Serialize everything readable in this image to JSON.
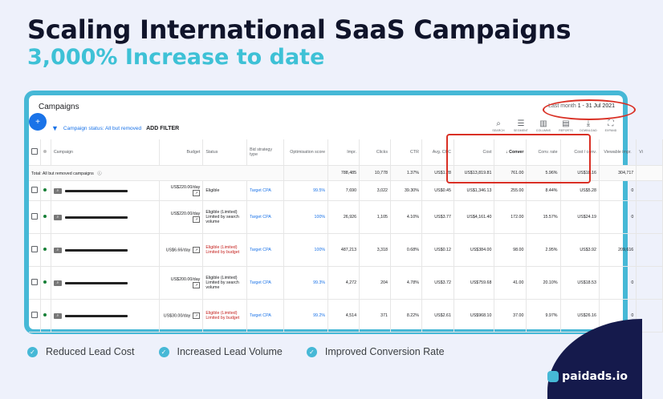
{
  "hero": {
    "title": "Scaling International SaaS Campaigns",
    "subtitle": "3,000% Increase to date"
  },
  "panel": {
    "title": "Campaigns",
    "date_label": "Last month",
    "date_value": "1 - 31 Jul 2021",
    "filter_status": "Campaign status: All but removed",
    "add_filter": "ADD FILTER"
  },
  "tools": [
    {
      "icon": "search-icon",
      "label": "SEARCH"
    },
    {
      "icon": "segment-icon",
      "label": "SEGMENT"
    },
    {
      "icon": "columns-icon",
      "label": "COLUMNS"
    },
    {
      "icon": "reports-icon",
      "label": "REPORTS"
    },
    {
      "icon": "download-icon",
      "label": "DOWNLOAD"
    },
    {
      "icon": "expand-icon",
      "label": "EXPAND"
    }
  ],
  "table": {
    "headers": [
      "Campaign",
      "Budget",
      "Status",
      "Bid strategy type",
      "Optimisation score",
      "Impr.",
      "Clicks",
      "CTR",
      "Avg. CPC",
      "Cost",
      "↓ Conver",
      "Conv. rate",
      "Cost / conv.",
      "Viewable impr.",
      "Vi"
    ],
    "total": {
      "label": "Total: All but removed campaigns",
      "impr": "788,485",
      "clicks": "10,778",
      "ctr": "1.37%",
      "cpc": "US$1.28",
      "cost": "US$13,819.81",
      "conv": "761.00",
      "conv_rate": "5.96%",
      "cost_conv": "US$18.16",
      "viewable": "304,717"
    },
    "rows": [
      {
        "budget": "US$220.00/day",
        "status": "Eligible",
        "bid": "Target CPA",
        "opt": "99.5%",
        "impr": "7,690",
        "clicks": "3,022",
        "ctr": "39.30%",
        "cpc": "US$0.45",
        "cost": "US$1,346.13",
        "conv": "255.00",
        "conv_rate": "8.44%",
        "cost_conv": "US$5.28",
        "viewable": "0"
      },
      {
        "budget": "US$220.00/day",
        "status": "Eligible (Limited) Limited by search volume",
        "bid": "Target CPA",
        "opt": "100%",
        "impr": "26,926",
        "clicks": "1,105",
        "ctr": "4.10%",
        "cpc": "US$3.77",
        "cost": "US$4,161.40",
        "conv": "172.00",
        "conv_rate": "15.57%",
        "cost_conv": "US$24.19",
        "viewable": "0"
      },
      {
        "budget": "US$6.66/day",
        "status": "Eligible (Limited) Limited by budget",
        "bid": "Target CPA",
        "opt": "100%",
        "impr": "487,213",
        "clicks": "3,318",
        "ctr": "0.68%",
        "cpc": "US$0.12",
        "cost": "US$384.00",
        "conv": "98.00",
        "conv_rate": "2.95%",
        "cost_conv": "US$3.92",
        "viewable": "209,616"
      },
      {
        "budget": "US$200.00/day",
        "status": "Eligible (Limited) Limited by search volume",
        "bid": "Target CPA",
        "opt": "99.3%",
        "impr": "4,272",
        "clicks": "204",
        "ctr": "4.78%",
        "cpc": "US$3.72",
        "cost": "US$759.68",
        "conv": "41.00",
        "conv_rate": "20.10%",
        "cost_conv": "US$18.53",
        "viewable": "0"
      },
      {
        "budget": "US$30.00/day",
        "status": "Eligible (Limited) Limited by budget",
        "bid": "Target CPA",
        "opt": "99.2%",
        "impr": "4,514",
        "clicks": "371",
        "ctr": "8.22%",
        "cpc": "US$2.61",
        "cost": "US$968.10",
        "conv": "37.00",
        "conv_rate": "9.97%",
        "cost_conv": "US$26.16",
        "viewable": "0"
      }
    ]
  },
  "benefits": [
    "Reduced Lead Cost",
    "Increased Lead Volume",
    "Improved Conversion Rate"
  ],
  "brand": "paidads.io",
  "colors": {
    "accent": "#46b8d6",
    "highlight": "#d93025",
    "navy": "#151a4c"
  }
}
